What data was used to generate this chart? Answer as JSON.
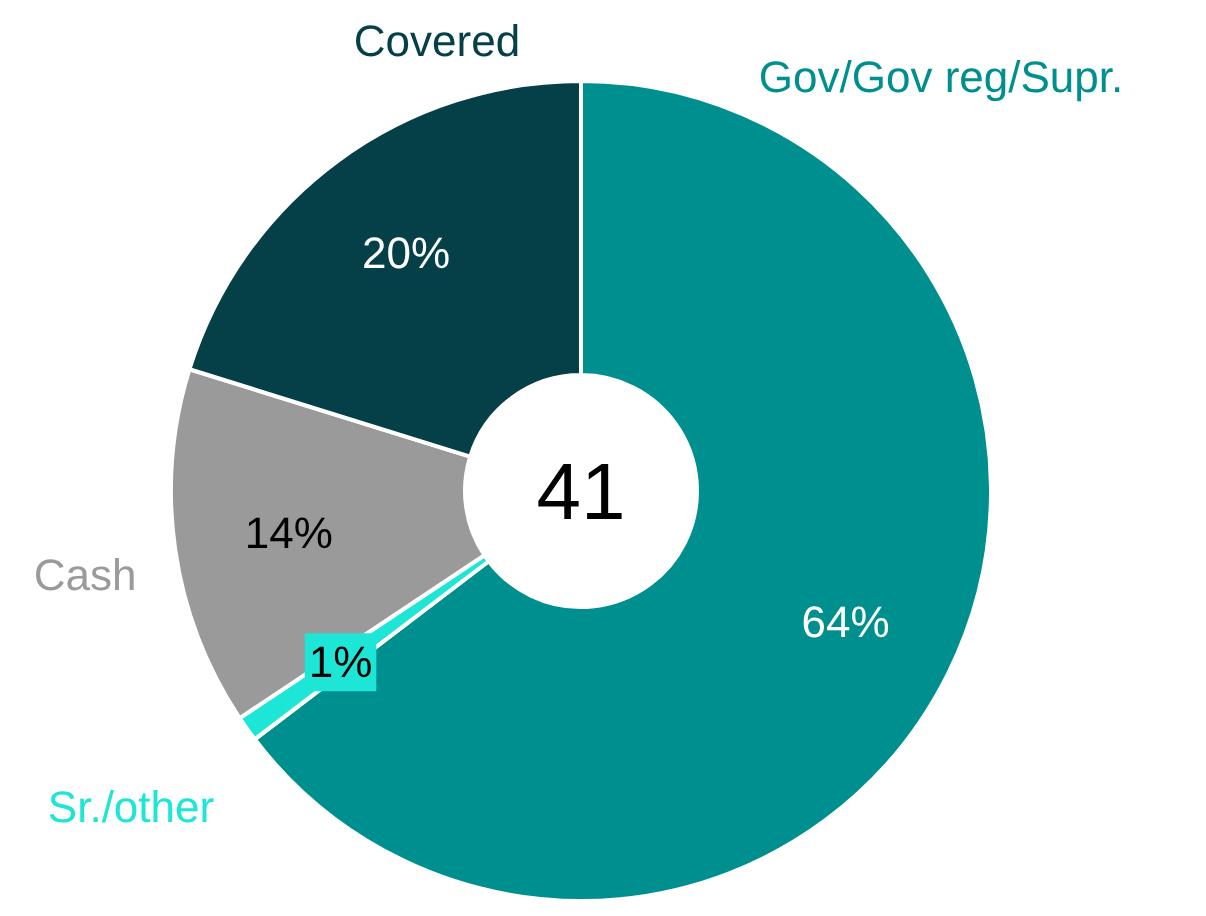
{
  "chart_data": {
    "type": "donut",
    "categories": [
      "Gov/Gov reg/Supr.",
      "Sr./other",
      "Cash",
      "Covered"
    ],
    "values": [
      64,
      1,
      14,
      20
    ],
    "colors": [
      "#008f8f",
      "#1de6d6",
      "#9a9a9a",
      "#053f48"
    ],
    "value_labels": [
      "64%",
      "1%",
      "14%",
      "20%"
    ],
    "annotations": [
      "41"
    ]
  }
}
